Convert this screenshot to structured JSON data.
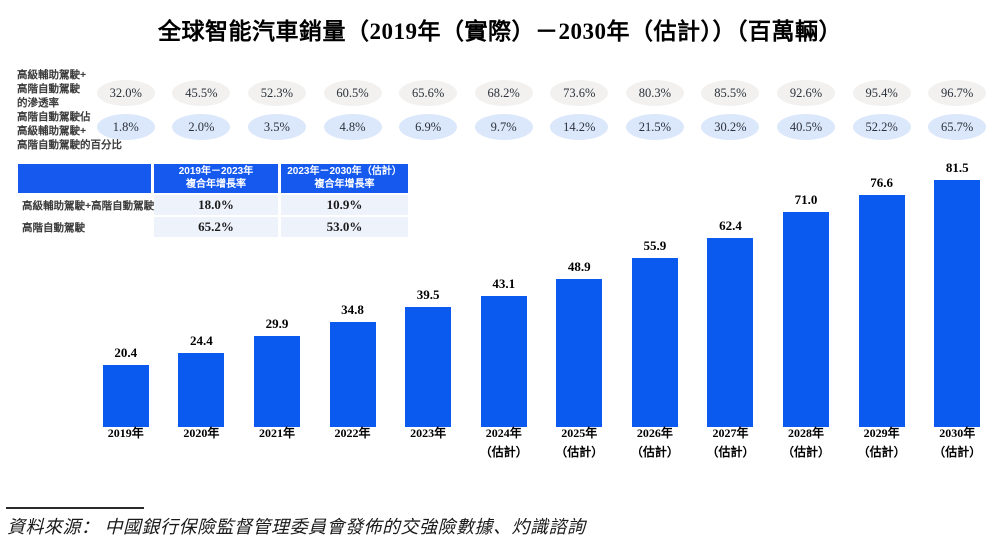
{
  "title": "全球智能汽車銷量（2019年（實際）－2030年（估計））（百萬輛）",
  "colors": {
    "bar": "#0B5AF0",
    "table_header_bg": "#1559EF",
    "table_cell_bg": "#EDF2FB",
    "badge_gray_bg": "#F2F1EF",
    "badge_blue_bg": "#DBE7FA",
    "title_text": "#000000",
    "source_text": "#1A1A1A"
  },
  "penetration_row": {
    "label_lines": [
      "高級輔助駕駛+",
      "高階自動駕駛",
      "的滲透率"
    ]
  },
  "share_row": {
    "label_lines": [
      "高階自動駕駛佔",
      "高級輔助駕駛+",
      "高階自動駕駛的百分比"
    ]
  },
  "growth_table": {
    "col1_header_lines": [
      "2019年－2023年",
      "複合年增長率"
    ],
    "col2_header_lines": [
      "2023年－2030年（估計）",
      "複合年增長率"
    ],
    "rows": [
      {
        "label": "高級輔助駕駛+高階自動駕駛",
        "cagr_2019_2023": "18.0%",
        "cagr_2023_2030": "10.9%"
      },
      {
        "label": "高階自動駕駛",
        "cagr_2019_2023": "65.2%",
        "cagr_2023_2030": "53.0%"
      }
    ]
  },
  "chart_data": {
    "type": "bar",
    "title": "全球智能汽車銷量（2019年（實際）－2030年（估計））（百萬輛）",
    "unit_label": "百萬輛",
    "categories": [
      "2019年",
      "2020年",
      "2021年",
      "2022年",
      "2023年",
      "2024年（估計）",
      "2025年（估計）",
      "2026年（估計）",
      "2027年（估計）",
      "2028年（估計）",
      "2029年（估計）",
      "2030年（估計）"
    ],
    "values": [
      20.4,
      24.4,
      29.9,
      34.8,
      39.5,
      43.1,
      48.9,
      55.9,
      62.4,
      71.0,
      76.6,
      81.5
    ],
    "ylim": [
      0,
      85
    ],
    "grid": false,
    "legend_position": "none",
    "bar_color": "#0B5AF0",
    "xlabel": "",
    "ylabel": "",
    "annotation_rows": [
      {
        "name": "高級輔助駕駛+高階自動駕駛的滲透率",
        "unit": "%",
        "values": [
          32.0,
          45.5,
          52.3,
          60.5,
          65.6,
          68.2,
          73.6,
          80.3,
          85.5,
          92.6,
          95.4,
          96.7
        ]
      },
      {
        "name": "高階自動駕駛佔高級輔助駕駛+高階自動駕駛的百分比",
        "unit": "%",
        "values": [
          1.8,
          2.0,
          3.5,
          4.8,
          6.9,
          9.7,
          14.2,
          21.5,
          30.2,
          40.5,
          52.2,
          65.7
        ]
      }
    ]
  },
  "source": "資料來源： 中國銀行保險監督管理委員會發佈的交強險數據、灼識諮詢"
}
